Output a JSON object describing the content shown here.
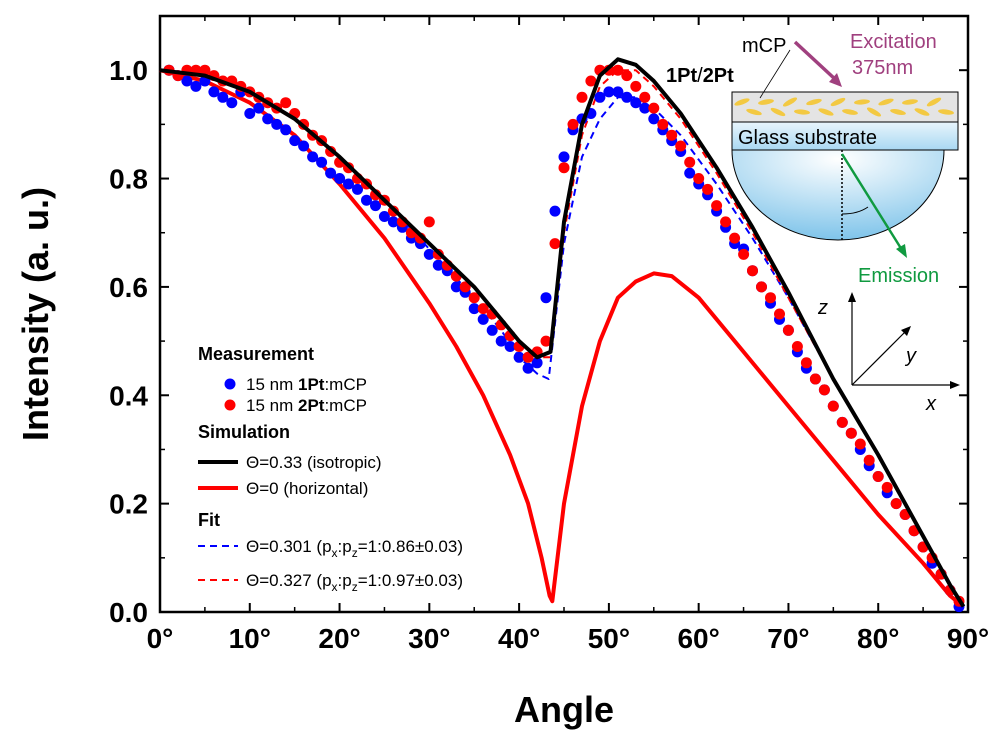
{
  "chart_data": {
    "type": "scatter",
    "xlabel": "Angle",
    "ylabel": "Intensity (a. u.)",
    "xlim": [
      0,
      90
    ],
    "ylim": [
      0,
      1.1
    ],
    "x_ticks": [
      "0°",
      "10°",
      "20°",
      "30°",
      "40°",
      "50°",
      "60°",
      "70°",
      "80°",
      "90°"
    ],
    "x_tick_values": [
      0,
      10,
      20,
      30,
      40,
      50,
      60,
      70,
      80,
      90
    ],
    "y_ticks": [
      "0.0",
      "0.2",
      "0.4",
      "0.6",
      "0.8",
      "1.0"
    ],
    "y_tick_values": [
      0,
      0.2,
      0.4,
      0.6,
      0.8,
      1.0
    ],
    "grid": false,
    "legend_placement": "bottom-left",
    "legend": {
      "measurement_heading": "Measurement",
      "simulation_heading": "Simulation",
      "fit_heading": "Fit"
    },
    "series": [
      {
        "name": "15 nm 1Pt:mCP",
        "label_prefix": "15 nm ",
        "label_bold": "1Pt",
        "label_suffix": ":mCP",
        "kind": "scatter",
        "color": "#0000ff",
        "x": [
          1,
          2,
          3,
          4,
          5,
          6,
          7,
          8,
          9,
          10,
          11,
          12,
          13,
          14,
          15,
          16,
          17,
          18,
          19,
          20,
          21,
          22,
          23,
          24,
          25,
          26,
          27,
          28,
          29,
          30,
          31,
          32,
          33,
          34,
          35,
          36,
          37,
          38,
          39,
          40,
          41,
          42,
          43,
          44,
          45,
          46,
          47,
          48,
          49,
          50,
          51,
          52,
          53,
          54,
          55,
          56,
          57,
          58,
          59,
          60,
          61,
          62,
          63,
          64,
          65,
          66,
          67,
          68,
          69,
          70,
          71,
          72,
          73,
          74,
          75,
          76,
          77,
          78,
          79,
          80,
          81,
          82,
          83,
          84,
          85,
          86,
          87,
          88,
          89
        ],
        "y": [
          1.0,
          0.99,
          0.98,
          0.97,
          0.98,
          0.96,
          0.95,
          0.94,
          0.96,
          0.92,
          0.93,
          0.91,
          0.9,
          0.89,
          0.87,
          0.86,
          0.84,
          0.83,
          0.81,
          0.8,
          0.79,
          0.78,
          0.76,
          0.75,
          0.73,
          0.72,
          0.71,
          0.69,
          0.68,
          0.66,
          0.64,
          0.63,
          0.6,
          0.59,
          0.56,
          0.54,
          0.52,
          0.5,
          0.49,
          0.47,
          0.45,
          0.46,
          0.58,
          0.74,
          0.84,
          0.89,
          0.91,
          0.92,
          0.95,
          0.96,
          0.96,
          0.95,
          0.94,
          0.93,
          0.91,
          0.89,
          0.87,
          0.85,
          0.81,
          0.79,
          0.77,
          0.74,
          0.71,
          0.68,
          0.67,
          0.63,
          0.6,
          0.57,
          0.54,
          0.52,
          0.48,
          0.45,
          0.43,
          0.41,
          0.38,
          0.35,
          0.33,
          0.3,
          0.27,
          0.25,
          0.22,
          0.2,
          0.18,
          0.15,
          0.12,
          0.09,
          0.07,
          0.04,
          0.01
        ]
      },
      {
        "name": "15 nm 2Pt:mCP",
        "label_prefix": "15 nm ",
        "label_bold": "2Pt",
        "label_suffix": ":mCP",
        "kind": "scatter",
        "color": "#ff0000",
        "x": [
          1,
          2,
          3,
          4,
          5,
          6,
          7,
          8,
          9,
          10,
          11,
          12,
          13,
          14,
          15,
          16,
          17,
          18,
          19,
          20,
          21,
          22,
          23,
          24,
          25,
          26,
          27,
          28,
          29,
          30,
          31,
          32,
          33,
          34,
          35,
          36,
          37,
          38,
          39,
          40,
          41,
          42,
          43,
          44,
          45,
          46,
          47,
          48,
          49,
          50,
          51,
          52,
          53,
          54,
          55,
          56,
          57,
          58,
          59,
          60,
          61,
          62,
          63,
          64,
          65,
          66,
          67,
          68,
          69,
          70,
          71,
          72,
          73,
          74,
          75,
          76,
          77,
          78,
          79,
          80,
          81,
          82,
          83,
          84,
          85,
          86,
          87,
          88,
          89
        ],
        "y": [
          1.0,
          0.99,
          1.0,
          1.0,
          1.0,
          0.99,
          0.98,
          0.98,
          0.97,
          0.96,
          0.95,
          0.94,
          0.93,
          0.94,
          0.92,
          0.9,
          0.88,
          0.87,
          0.85,
          0.83,
          0.82,
          0.8,
          0.79,
          0.77,
          0.76,
          0.74,
          0.72,
          0.7,
          0.69,
          0.72,
          0.66,
          0.64,
          0.62,
          0.6,
          0.58,
          0.56,
          0.55,
          0.53,
          0.51,
          0.49,
          0.47,
          0.48,
          0.5,
          0.68,
          0.82,
          0.9,
          0.95,
          0.98,
          1.0,
          1.0,
          1.0,
          0.99,
          0.97,
          0.95,
          0.93,
          0.9,
          0.88,
          0.86,
          0.83,
          0.8,
          0.78,
          0.75,
          0.72,
          0.69,
          0.66,
          0.63,
          0.6,
          0.58,
          0.55,
          0.52,
          0.49,
          0.46,
          0.43,
          0.41,
          0.38,
          0.35,
          0.33,
          0.31,
          0.28,
          0.25,
          0.23,
          0.2,
          0.18,
          0.15,
          0.12,
          0.1,
          0.07,
          0.04,
          0.02
        ]
      },
      {
        "name": "Θ=0.33 (isotropic)",
        "kind": "line",
        "style": "solid",
        "color": "#000000",
        "x": [
          0,
          5,
          10,
          15,
          20,
          25,
          30,
          35,
          38,
          40,
          42,
          43.5,
          45,
          47,
          49,
          51,
          53,
          55,
          58,
          62,
          66,
          70,
          75,
          80,
          85,
          88,
          89.5
        ],
        "y": [
          1.0,
          0.99,
          0.96,
          0.91,
          0.84,
          0.76,
          0.68,
          0.6,
          0.54,
          0.5,
          0.47,
          0.48,
          0.72,
          0.9,
          0.99,
          1.02,
          1.01,
          0.98,
          0.92,
          0.82,
          0.71,
          0.59,
          0.43,
          0.29,
          0.14,
          0.05,
          0.01
        ]
      },
      {
        "name": "Θ=0 (horizontal)",
        "kind": "line",
        "style": "solid",
        "color": "#ff0000",
        "x": [
          0,
          5,
          10,
          15,
          20,
          25,
          30,
          33,
          36,
          39,
          41,
          42.5,
          43.4,
          43.7,
          45,
          47,
          49,
          51,
          53,
          55,
          57,
          60,
          65,
          70,
          75,
          80,
          85,
          88,
          89.5
        ],
        "y": [
          1.0,
          0.98,
          0.94,
          0.88,
          0.79,
          0.69,
          0.57,
          0.49,
          0.4,
          0.29,
          0.2,
          0.1,
          0.03,
          0.02,
          0.2,
          0.38,
          0.5,
          0.58,
          0.61,
          0.625,
          0.62,
          0.58,
          0.48,
          0.38,
          0.28,
          0.18,
          0.09,
          0.03,
          0.01
        ]
      },
      {
        "name": "Θ=0.301 (px:pz=1:0.86±0.03)",
        "label_prefix": "Θ=0.301 (p",
        "label_mid": ":p",
        "label_suffix": "=1:0.86±0.03)",
        "kind": "line",
        "style": "dashed",
        "color": "#0000ff",
        "x": [
          0,
          5,
          10,
          15,
          20,
          25,
          30,
          35,
          38,
          40,
          42,
          43.3,
          45,
          47,
          49,
          51,
          53,
          55,
          58,
          62,
          66,
          70,
          75,
          80,
          85,
          88,
          89.5
        ],
        "y": [
          1.0,
          0.99,
          0.96,
          0.91,
          0.84,
          0.76,
          0.67,
          0.58,
          0.52,
          0.47,
          0.44,
          0.43,
          0.68,
          0.84,
          0.91,
          0.95,
          0.95,
          0.93,
          0.88,
          0.79,
          0.69,
          0.58,
          0.43,
          0.29,
          0.14,
          0.05,
          0.01
        ]
      },
      {
        "name": "Θ=0.327 (px:pz=1:0.97±0.03)",
        "label_prefix": "Θ=0.327 (p",
        "label_mid": ":p",
        "label_suffix": "=1:0.97±0.03)",
        "kind": "line",
        "style": "dashed",
        "color": "#ff0000",
        "x": [
          0,
          5,
          10,
          15,
          20,
          25,
          30,
          35,
          38,
          40,
          42,
          43.5,
          45,
          47,
          49,
          51,
          53,
          55,
          58,
          62,
          66,
          70,
          75,
          80,
          85,
          88,
          89.5
        ],
        "y": [
          1.0,
          0.99,
          0.96,
          0.91,
          0.84,
          0.76,
          0.68,
          0.6,
          0.54,
          0.5,
          0.47,
          0.47,
          0.7,
          0.88,
          0.97,
          1.0,
          1.0,
          0.97,
          0.91,
          0.81,
          0.7,
          0.58,
          0.43,
          0.29,
          0.14,
          0.05,
          0.01
        ]
      }
    ],
    "inset": {
      "layer_label": "mCP",
      "emitter_label_1": "1Pt",
      "emitter_label_sep": "/",
      "emitter_label_2": "2Pt",
      "excitation_label": "Excitation",
      "excitation_wavelength": "375nm",
      "substrate_label": "Glass substrate",
      "emission_label": "Emission",
      "axis_z": "z",
      "axis_y": "y",
      "axis_x": "x",
      "excitation_color": "#a0407f",
      "emission_color": "#109a40"
    }
  }
}
